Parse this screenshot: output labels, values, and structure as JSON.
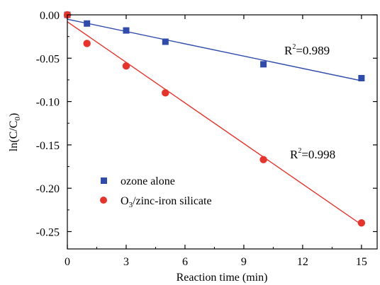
{
  "chart_data": {
    "type": "scatter",
    "xlabel": "Reaction time (min)",
    "ylabel": {
      "main": "ln(C/C",
      "sub": "0",
      "close": ")"
    },
    "xlim": [
      0,
      15.8
    ],
    "ylim": [
      -0.27,
      0.0
    ],
    "xticks": [
      0,
      3,
      6,
      9,
      12,
      15
    ],
    "yticks": [
      0.0,
      -0.05,
      -0.1,
      -0.15,
      -0.2,
      -0.25
    ],
    "ytick_labels": [
      "0.00",
      "-0.05",
      "-0.10",
      "-0.15",
      "-0.20",
      "-0.25"
    ],
    "legend_position": "middle-left",
    "series": [
      {
        "name": "ozone alone",
        "marker": "square",
        "color": "#2f4bab",
        "x": [
          0,
          1,
          3,
          5,
          10,
          15
        ],
        "y": [
          0.0,
          -0.01,
          -0.018,
          -0.031,
          -0.057,
          -0.073
        ],
        "fit": {
          "x": [
            0,
            15
          ],
          "y": [
            -0.005,
            -0.076
          ]
        },
        "r2_label": {
          "base": "R",
          "sup": "2",
          "value": "=0.989"
        }
      },
      {
        "name_parts": {
          "pre": "O",
          "sub": "3",
          "post": "/zinc-iron silicate"
        },
        "marker": "circle",
        "color": "#e8332b",
        "x": [
          0,
          1,
          3,
          5,
          10,
          15
        ],
        "y": [
          0.0,
          -0.033,
          -0.059,
          -0.09,
          -0.167,
          -0.24
        ],
        "fit": {
          "x": [
            0,
            15
          ],
          "y": [
            -0.008,
            -0.242
          ]
        },
        "r2_label": {
          "base": "R",
          "sup": "2",
          "value": "=0.998"
        }
      }
    ],
    "legend_ozone_label": "ozone alone"
  }
}
